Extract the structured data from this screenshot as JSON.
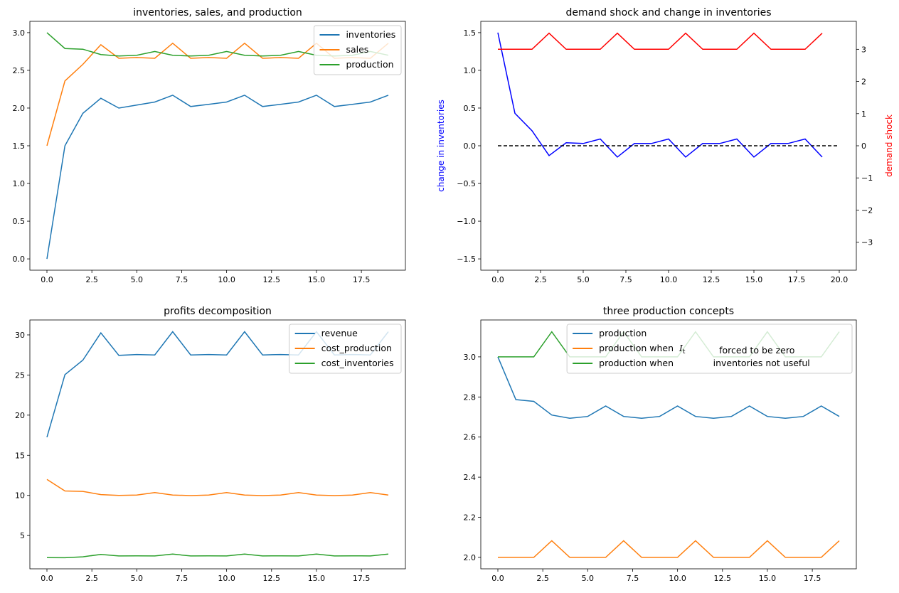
{
  "chart_data": [
    {
      "type": "line",
      "title": "inventories, sales, and production",
      "x": [
        0,
        1,
        2,
        3,
        4,
        5,
        6,
        7,
        8,
        9,
        10,
        11,
        12,
        13,
        14,
        15,
        16,
        17,
        18,
        19
      ],
      "xlim": [
        -0.95,
        19.95
      ],
      "ylim": [
        -0.15,
        3.15
      ],
      "xticks": [
        0,
        2.5,
        5,
        7.5,
        10,
        12.5,
        15,
        17.5
      ],
      "xtick_labels": [
        "0.0",
        "2.5",
        "5.0",
        "7.5",
        "10.0",
        "12.5",
        "15.0",
        "17.5"
      ],
      "yticks": [
        0,
        0.5,
        1,
        1.5,
        2,
        2.5,
        3
      ],
      "ytick_labels": [
        "0.0",
        "0.5",
        "1.0",
        "1.5",
        "2.0",
        "2.5",
        "3.0"
      ],
      "legend": "upper-right",
      "series": [
        {
          "name": "inventories",
          "color": "#1f77b4",
          "values": [
            0,
            1.5,
            1.93,
            2.13,
            2.0,
            2.04,
            2.08,
            2.17,
            2.02,
            2.05,
            2.08,
            2.17,
            2.02,
            2.05,
            2.08,
            2.17,
            2.02,
            2.05,
            2.08,
            2.17
          ]
        },
        {
          "name": "sales",
          "color": "#ff7f0e",
          "values": [
            1.5,
            2.36,
            2.58,
            2.84,
            2.66,
            2.67,
            2.66,
            2.86,
            2.66,
            2.67,
            2.66,
            2.86,
            2.66,
            2.67,
            2.66,
            2.86,
            2.66,
            2.67,
            2.66,
            2.86
          ]
        },
        {
          "name": "production",
          "color": "#2ca02c",
          "values": [
            3.0,
            2.79,
            2.78,
            2.71,
            2.69,
            2.7,
            2.75,
            2.7,
            2.69,
            2.7,
            2.75,
            2.7,
            2.69,
            2.7,
            2.75,
            2.7,
            2.69,
            2.7,
            2.75,
            2.7
          ]
        }
      ]
    },
    {
      "type": "line",
      "title": "demand shock and change in inventories",
      "xlim": [
        -1,
        21
      ],
      "ylim": [
        -1.65,
        1.65
      ],
      "ylim_right": [
        -3.87,
        3.87
      ],
      "ylabel": "change in inventories",
      "ylabel_color": "#0000ff",
      "ylabel_right": "demand shock",
      "ylabel_right_color": "#ff0000",
      "xticks": [
        0,
        2.5,
        5,
        7.5,
        10,
        12.5,
        15,
        17.5,
        20
      ],
      "xtick_labels": [
        "0.0",
        "2.5",
        "5.0",
        "7.5",
        "10.0",
        "12.5",
        "15.0",
        "17.5",
        "20.0"
      ],
      "yticks": [
        -1.5,
        -1,
        -0.5,
        0,
        0.5,
        1,
        1.5
      ],
      "ytick_labels": [
        "−1.5",
        "−1.0",
        "−0.5",
        "0.0",
        "0.5",
        "1.0",
        "1.5"
      ],
      "yticks_right": [
        -3,
        -2,
        -1,
        0,
        1,
        2,
        3
      ],
      "ytick_labels_right": [
        "−3",
        "−2",
        "−1",
        "0",
        "1",
        "2",
        "3"
      ],
      "series": [
        {
          "axis": "left",
          "color": "#0000ff",
          "x": [
            0,
            1,
            2,
            3,
            4,
            5,
            6,
            7,
            8,
            9,
            10,
            11,
            12,
            13,
            14,
            15,
            16,
            17,
            18,
            19
          ],
          "values": [
            1.5,
            0.43,
            0.2,
            -0.13,
            0.04,
            0.03,
            0.09,
            -0.15,
            0.03,
            0.03,
            0.09,
            -0.15,
            0.03,
            0.03,
            0.09,
            -0.15,
            0.03,
            0.03,
            0.09,
            -0.15
          ]
        },
        {
          "axis": "left",
          "color": "#000000",
          "dashed": true,
          "x": [
            0,
            20
          ],
          "values": [
            0,
            0
          ]
        },
        {
          "axis": "right",
          "color": "#ff0000",
          "x": [
            0,
            1,
            2,
            3,
            4,
            5,
            6,
            7,
            8,
            9,
            10,
            11,
            12,
            13,
            14,
            15,
            16,
            17,
            18,
            19
          ],
          "values": [
            3,
            3,
            3,
            3.5,
            3,
            3,
            3,
            3.5,
            3,
            3,
            3,
            3.5,
            3,
            3,
            3,
            3.5,
            3,
            3,
            3,
            3.5
          ]
        }
      ]
    },
    {
      "type": "line",
      "title": "profits decomposition",
      "x": [
        0,
        1,
        2,
        3,
        4,
        5,
        6,
        7,
        8,
        9,
        10,
        11,
        12,
        13,
        14,
        15,
        16,
        17,
        18,
        19
      ],
      "xlim": [
        -0.95,
        19.95
      ],
      "ylim": [
        0.85,
        31.86
      ],
      "xticks": [
        0,
        2.5,
        5,
        7.5,
        10,
        12.5,
        15,
        17.5
      ],
      "xtick_labels": [
        "0.0",
        "2.5",
        "5.0",
        "7.5",
        "10.0",
        "12.5",
        "15.0",
        "17.5"
      ],
      "yticks": [
        5,
        10,
        15,
        20,
        25,
        30
      ],
      "ytick_labels": [
        "5",
        "10",
        "15",
        "20",
        "25",
        "30"
      ],
      "legend": "upper-right",
      "series": [
        {
          "name": "revenue",
          "color": "#1f77b4",
          "values": [
            17.25,
            25.05,
            26.85,
            30.25,
            27.45,
            27.55,
            27.5,
            30.4,
            27.5,
            27.55,
            27.5,
            30.4,
            27.5,
            27.55,
            27.5,
            30.4,
            27.5,
            27.55,
            27.5,
            30.4
          ]
        },
        {
          "name": "cost_production",
          "color": "#ff7f0e",
          "values": [
            12.0,
            10.55,
            10.5,
            10.1,
            10.0,
            10.05,
            10.35,
            10.05,
            9.98,
            10.05,
            10.35,
            10.05,
            9.98,
            10.05,
            10.35,
            10.05,
            9.98,
            10.05,
            10.35,
            10.05
          ]
        },
        {
          "name": "cost_inventories",
          "color": "#2ca02c",
          "values": [
            2.25,
            2.23,
            2.35,
            2.65,
            2.45,
            2.47,
            2.45,
            2.68,
            2.45,
            2.47,
            2.45,
            2.68,
            2.45,
            2.47,
            2.45,
            2.68,
            2.45,
            2.47,
            2.45,
            2.68
          ]
        }
      ]
    },
    {
      "type": "line",
      "title": "three production concepts",
      "x": [
        0,
        1,
        2,
        3,
        4,
        5,
        6,
        7,
        8,
        9,
        10,
        11,
        12,
        13,
        14,
        15,
        16,
        17,
        18,
        19
      ],
      "xlim": [
        -0.95,
        19.95
      ],
      "ylim": [
        1.943,
        3.184
      ],
      "xticks": [
        0,
        2.5,
        5,
        7.5,
        10,
        12.5,
        15,
        17.5
      ],
      "xtick_labels": [
        "0.0",
        "2.5",
        "5.0",
        "7.5",
        "10.0",
        "12.5",
        "15.0",
        "17.5"
      ],
      "yticks": [
        2.0,
        2.2,
        2.4,
        2.6,
        2.8,
        3.0
      ],
      "ytick_labels": [
        "2.0",
        "2.2",
        "2.4",
        "2.6",
        "2.8",
        "3.0"
      ],
      "legend": "upper-right",
      "series": [
        {
          "name": "production",
          "color": "#1f77b4",
          "values": [
            3.0,
            2.787,
            2.778,
            2.71,
            2.694,
            2.703,
            2.755,
            2.703,
            2.694,
            2.703,
            2.755,
            2.703,
            2.694,
            2.703,
            2.755,
            2.703,
            2.694,
            2.703,
            2.755,
            2.703
          ]
        },
        {
          "name": "production when  I_t            forced to be zero",
          "color": "#ff7f0e",
          "values": [
            2.0,
            2.0,
            2.0,
            2.083,
            2.0,
            2.0,
            2.0,
            2.083,
            2.0,
            2.0,
            2.0,
            2.083,
            2.0,
            2.0,
            2.0,
            2.083,
            2.0,
            2.0,
            2.0,
            2.083
          ]
        },
        {
          "name": "production when              inventories not useful",
          "color": "#2ca02c",
          "values": [
            3.0,
            3.0,
            3.0,
            3.125,
            3.0,
            3.0,
            3.0,
            3.125,
            3.0,
            3.0,
            3.0,
            3.125,
            3.0,
            3.0,
            3.0,
            3.125,
            3.0,
            3.0,
            3.0,
            3.125
          ]
        }
      ]
    }
  ]
}
